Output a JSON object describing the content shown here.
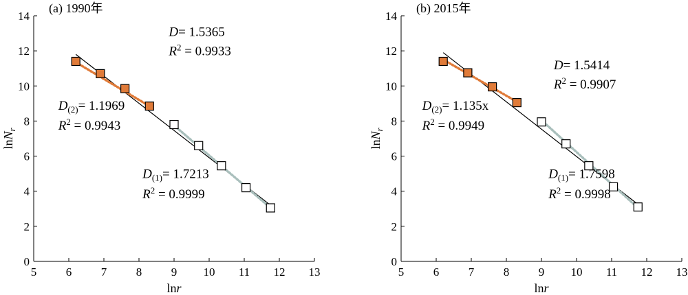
{
  "chart_data": [
    {
      "type": "scatter",
      "panel_title": "(a) 1990年",
      "xlabel": "lnr",
      "ylabel": "lnN_r",
      "xlim": [
        5,
        13
      ],
      "ylim": [
        0,
        14
      ],
      "xticks": [
        5,
        6,
        7,
        8,
        9,
        10,
        11,
        12,
        13
      ],
      "yticks": [
        0,
        2,
        4,
        6,
        8,
        10,
        12,
        14
      ],
      "grid": false,
      "series": [
        {
          "marker": "filled-square",
          "color": "#e07b39",
          "points": [
            [
              6.2,
              11.4
            ],
            [
              6.9,
              10.7
            ],
            [
              7.6,
              9.85
            ],
            [
              8.3,
              8.85
            ]
          ]
        },
        {
          "marker": "open-square",
          "color": "#000000",
          "points": [
            [
              9.0,
              7.8
            ],
            [
              9.7,
              6.6
            ],
            [
              10.35,
              5.45
            ],
            [
              11.05,
              4.2
            ],
            [
              11.75,
              3.05
            ]
          ]
        }
      ],
      "fits": [
        {
          "style": "solid",
          "color": "#000000",
          "from": [
            6.2,
            11.8
          ],
          "to": [
            11.75,
            3.2
          ]
        },
        {
          "style": "dotted",
          "color": "#e07b39",
          "from": [
            6.2,
            11.35
          ],
          "to": [
            8.3,
            8.85
          ]
        },
        {
          "style": "dotted",
          "color": "#a9bfbc",
          "from": [
            9.0,
            7.75
          ],
          "to": [
            11.75,
            3.05
          ]
        }
      ],
      "annotations": [
        {
          "key": "D",
          "sub": "",
          "value": "= 1.5365",
          "x": 8.85,
          "y": 12.85,
          "r2": "= 0.9933",
          "r2_x": 8.85,
          "r2_y": 11.75
        },
        {
          "key": "D",
          "sub": "(2)",
          "value": "= 1.1969",
          "x": 5.7,
          "y": 8.65,
          "r2": "= 0.9943",
          "r2_x": 5.7,
          "r2_y": 7.5
        },
        {
          "key": "D",
          "sub": "(1)",
          "value": "= 1.7213",
          "x": 8.1,
          "y": 4.75,
          "r2": "= 0.9999",
          "r2_x": 8.1,
          "r2_y": 3.6
        }
      ]
    },
    {
      "type": "scatter",
      "panel_title": "(b) 2015年",
      "xlabel": "lnr",
      "ylabel": "lnN_r",
      "xlim": [
        5,
        13
      ],
      "ylim": [
        0,
        14
      ],
      "xticks": [
        5,
        6,
        7,
        8,
        9,
        10,
        11,
        12,
        13
      ],
      "yticks": [
        0,
        2,
        4,
        6,
        8,
        10,
        12,
        14
      ],
      "grid": false,
      "series": [
        {
          "marker": "filled-square",
          "color": "#e07b39",
          "points": [
            [
              6.2,
              11.4
            ],
            [
              6.9,
              10.75
            ],
            [
              7.6,
              9.95
            ],
            [
              8.3,
              9.05
            ]
          ]
        },
        {
          "marker": "open-square",
          "color": "#000000",
          "points": [
            [
              9.0,
              7.95
            ],
            [
              9.7,
              6.7
            ],
            [
              10.35,
              5.45
            ],
            [
              11.05,
              4.25
            ],
            [
              11.75,
              3.1
            ]
          ]
        }
      ],
      "fits": [
        {
          "style": "solid",
          "color": "#000000",
          "from": [
            6.2,
            11.9
          ],
          "to": [
            11.75,
            3.25
          ]
        },
        {
          "style": "dotted",
          "color": "#e07b39",
          "from": [
            6.2,
            11.5
          ],
          "to": [
            8.3,
            9.1
          ]
        },
        {
          "style": "dotted",
          "color": "#a9bfbc",
          "from": [
            9.0,
            8.05
          ],
          "to": [
            11.75,
            3.05
          ]
        }
      ],
      "annotations": [
        {
          "key": "D",
          "sub": "",
          "value": "= 1.5414",
          "x": 9.35,
          "y": 10.95,
          "r2": "= 0.9907",
          "r2_x": 9.35,
          "r2_y": 9.85
        },
        {
          "key": "D",
          "sub": "(2)",
          "value": "= 1.135x",
          "x": 5.6,
          "y": 8.65,
          "r2": "= 0.9949",
          "r2_x": 5.6,
          "r2_y": 7.5
        },
        {
          "key": "D",
          "sub": "(1)",
          "value": "= 1.7598",
          "x": 9.2,
          "y": 4.75,
          "r2": "= 0.9998",
          "r2_x": 9.2,
          "r2_y": 3.6
        }
      ]
    }
  ]
}
